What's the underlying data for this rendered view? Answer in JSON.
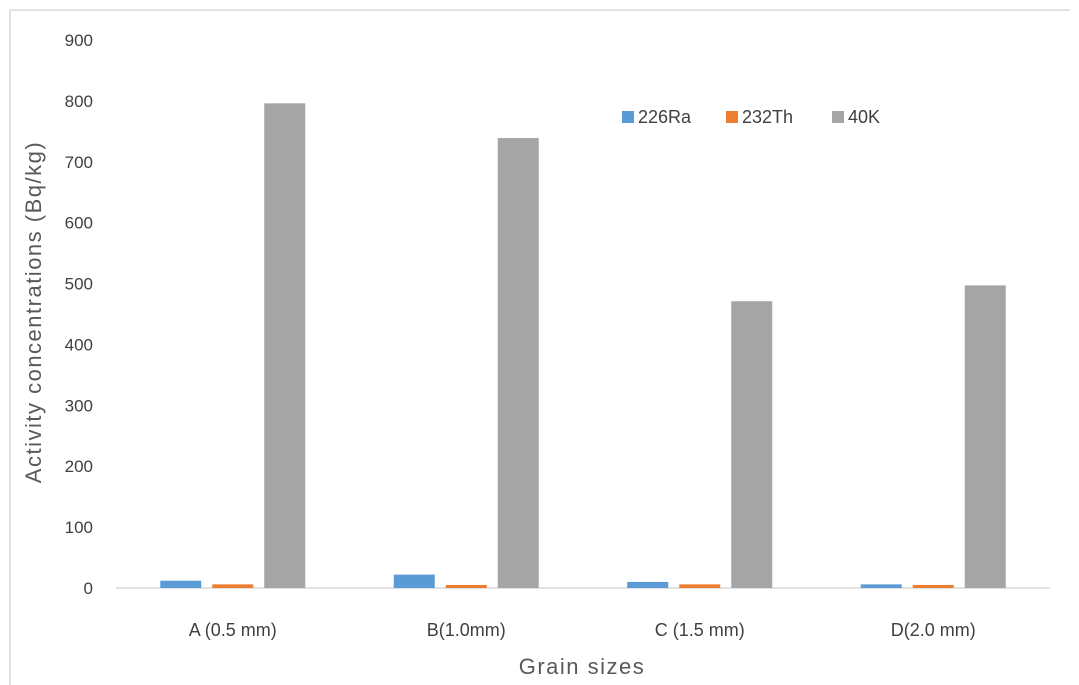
{
  "chart_data": {
    "type": "bar",
    "title": "",
    "xlabel": "Grain sizes",
    "ylabel": "Activity concentrations (Bq/kg)",
    "ylim": [
      0,
      900
    ],
    "yticks": [
      0,
      100,
      200,
      300,
      400,
      500,
      600,
      700,
      800,
      900
    ],
    "grid": false,
    "legend_position": "top-right",
    "categories": [
      "A (0.5 mm)",
      "B(1.0mm)",
      "C (1.5 mm)",
      "D(2.0 mm)"
    ],
    "series": [
      {
        "name": "226Ra",
        "color": "#5B9BD5",
        "values": [
          12,
          22,
          10,
          6
        ]
      },
      {
        "name": "232Th",
        "color": "#ED7D31",
        "values": [
          6,
          5,
          6,
          5
        ]
      },
      {
        "name": "40K",
        "color": "#A5A5A5",
        "values": [
          796,
          739,
          471,
          497
        ]
      }
    ]
  }
}
